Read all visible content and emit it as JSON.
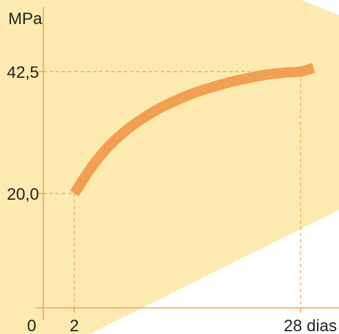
{
  "chart_data": {
    "type": "line",
    "ylabel": "MPa",
    "xlabel": "",
    "x_ticks": [
      {
        "value": 0,
        "label": "0"
      },
      {
        "value": 2,
        "label": "2"
      },
      {
        "value": 28,
        "label": "28 dias"
      }
    ],
    "y_ticks": [
      {
        "value": 20.0,
        "label": "20,0"
      },
      {
        "value": 42.5,
        "label": "42,5"
      }
    ],
    "series": [
      {
        "x": [
          2,
          4,
          6,
          8,
          10,
          12,
          14,
          16,
          18,
          20,
          22,
          24,
          26,
          28,
          29.5
        ],
        "y": [
          20.0,
          24.9,
          28.8,
          31.7,
          34.0,
          35.9,
          37.4,
          38.7,
          39.7,
          40.6,
          41.3,
          41.9,
          42.3,
          42.5,
          43.2
        ]
      }
    ],
    "reference_points": [
      {
        "x": 2,
        "y": 20.0
      },
      {
        "x": 28,
        "y": 42.5
      }
    ],
    "colors": {
      "curve": "#f0a050",
      "axis": "#f0a050",
      "guide": "#f0a050",
      "band": "#fdeab0"
    }
  }
}
